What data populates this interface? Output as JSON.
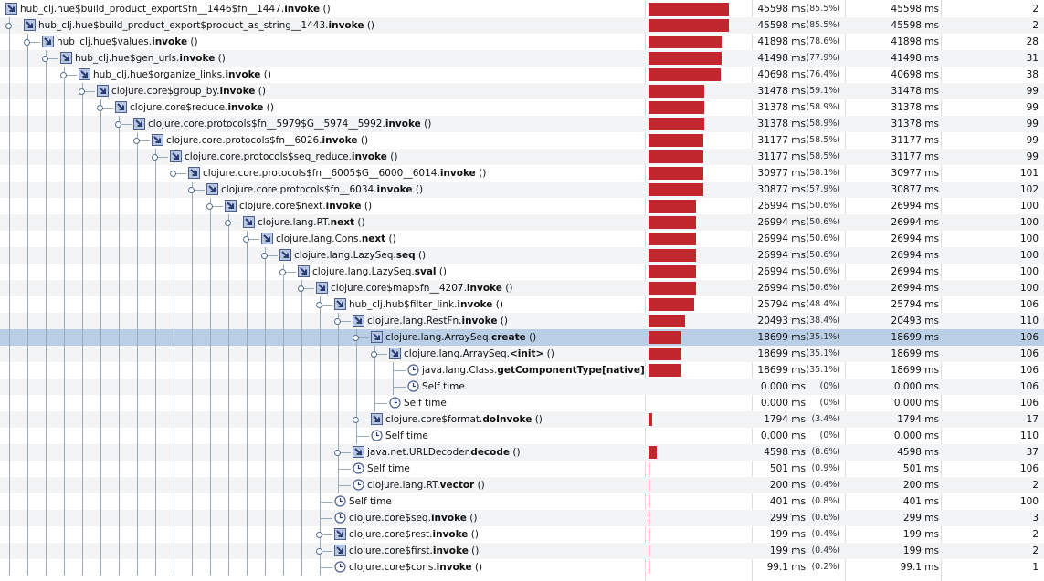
{
  "rows": [
    {
      "name": [
        "hub_clj.hue$build_product_export$fn__1446$fn__1447.",
        "invoke",
        " ()"
      ],
      "depth": 0,
      "time": "45598 ms",
      "pct": 85.5,
      "pct_label": "(85.5%)",
      "time2": "45598 ms",
      "count": "2"
    },
    {
      "name": [
        "hub_clj.hue$build_product_export$product_as_string__1443.",
        "invoke",
        " ()"
      ],
      "depth": 1,
      "time": "45598 ms",
      "pct": 85.5,
      "pct_label": "(85.5%)",
      "time2": "45598 ms",
      "count": "2"
    },
    {
      "name": [
        "hub_clj.hue$values.",
        "invoke",
        " ()"
      ],
      "depth": 2,
      "time": "41898 ms",
      "pct": 78.6,
      "pct_label": "(78.6%)",
      "time2": "41898 ms",
      "count": "28"
    },
    {
      "name": [
        "hub_clj.hue$gen_urls.",
        "invoke",
        " ()"
      ],
      "depth": 3,
      "time": "41498 ms",
      "pct": 77.9,
      "pct_label": "(77.9%)",
      "time2": "41498 ms",
      "count": "31"
    },
    {
      "name": [
        "hub_clj.hue$organize_links.",
        "invoke",
        " ()"
      ],
      "depth": 4,
      "time": "40698 ms",
      "pct": 76.4,
      "pct_label": "(76.4%)",
      "time2": "40698 ms",
      "count": "38"
    },
    {
      "name": [
        "clojure.core$group_by.",
        "invoke",
        " ()"
      ],
      "depth": 5,
      "time": "31478 ms",
      "pct": 59.1,
      "pct_label": "(59.1%)",
      "time2": "31478 ms",
      "count": "99"
    },
    {
      "name": [
        "clojure.core$reduce.",
        "invoke",
        " ()"
      ],
      "depth": 6,
      "time": "31378 ms",
      "pct": 58.9,
      "pct_label": "(58.9%)",
      "time2": "31378 ms",
      "count": "99"
    },
    {
      "name": [
        "clojure.core.protocols$fn__5979$G__5974__5992.",
        "invoke",
        " ()"
      ],
      "depth": 7,
      "time": "31378 ms",
      "pct": 58.9,
      "pct_label": "(58.9%)",
      "time2": "31378 ms",
      "count": "99"
    },
    {
      "name": [
        "clojure.core.protocols$fn__6026.",
        "invoke",
        " ()"
      ],
      "depth": 8,
      "time": "31177 ms",
      "pct": 58.5,
      "pct_label": "(58.5%)",
      "time2": "31177 ms",
      "count": "99"
    },
    {
      "name": [
        "clojure.core.protocols$seq_reduce.",
        "invoke",
        " ()"
      ],
      "depth": 9,
      "time": "31177 ms",
      "pct": 58.5,
      "pct_label": "(58.5%)",
      "time2": "31177 ms",
      "count": "99"
    },
    {
      "name": [
        "clojure.core.protocols$fn__6005$G__6000__6014.",
        "invoke",
        " ()"
      ],
      "depth": 10,
      "time": "30977 ms",
      "pct": 58.1,
      "pct_label": "(58.1%)",
      "time2": "30977 ms",
      "count": "101"
    },
    {
      "name": [
        "clojure.core.protocols$fn__6034.",
        "invoke",
        " ()"
      ],
      "depth": 11,
      "time": "30877 ms",
      "pct": 57.9,
      "pct_label": "(57.9%)",
      "time2": "30877 ms",
      "count": "102"
    },
    {
      "name": [
        "clojure.core$next.",
        "invoke",
        " ()"
      ],
      "depth": 12,
      "time": "26994 ms",
      "pct": 50.6,
      "pct_label": "(50.6%)",
      "time2": "26994 ms",
      "count": "100"
    },
    {
      "name": [
        "clojure.lang.RT.",
        "next",
        " ()"
      ],
      "depth": 13,
      "time": "26994 ms",
      "pct": 50.6,
      "pct_label": "(50.6%)",
      "time2": "26994 ms",
      "count": "100"
    },
    {
      "name": [
        "clojure.lang.Cons.",
        "next",
        " ()"
      ],
      "depth": 14,
      "time": "26994 ms",
      "pct": 50.6,
      "pct_label": "(50.6%)",
      "time2": "26994 ms",
      "count": "100"
    },
    {
      "name": [
        "clojure.lang.LazySeq.",
        "seq",
        " ()"
      ],
      "depth": 15,
      "time": "26994 ms",
      "pct": 50.6,
      "pct_label": "(50.6%)",
      "time2": "26994 ms",
      "count": "100"
    },
    {
      "name": [
        "clojure.lang.LazySeq.",
        "sval",
        " ()"
      ],
      "depth": 16,
      "time": "26994 ms",
      "pct": 50.6,
      "pct_label": "(50.6%)",
      "time2": "26994 ms",
      "count": "100"
    },
    {
      "name": [
        "clojure.core$map$fn__4207.",
        "invoke",
        " ()"
      ],
      "depth": 17,
      "time": "26994 ms",
      "pct": 50.6,
      "pct_label": "(50.6%)",
      "time2": "26994 ms",
      "count": "100"
    },
    {
      "name": [
        "hub_clj.hub$filter_link.",
        "invoke",
        " ()"
      ],
      "depth": 18,
      "time": "25794 ms",
      "pct": 48.4,
      "pct_label": "(48.4%)",
      "time2": "25794 ms",
      "count": "106"
    },
    {
      "name": [
        "clojure.lang.RestFn.",
        "invoke",
        " ()"
      ],
      "depth": 19,
      "time": "20493 ms",
      "pct": 38.4,
      "pct_label": "(38.4%)",
      "time2": "20493 ms",
      "count": "110"
    },
    {
      "name": [
        "clojure.lang.ArraySeq.",
        "create",
        " ()"
      ],
      "depth": 20,
      "time": "18699 ms",
      "pct": 35.1,
      "pct_label": "(35.1%)",
      "time2": "18699 ms",
      "count": "106",
      "selected": true
    },
    {
      "name": [
        "clojure.lang.ArraySeq.",
        "<init>",
        " ()"
      ],
      "depth": 21,
      "time": "18699 ms",
      "pct": 35.1,
      "pct_label": "(35.1%)",
      "time2": "18699 ms",
      "count": "106"
    },
    {
      "name": [
        "java.lang.Class.",
        "getComponentType[native]",
        " ()"
      ],
      "depth": 22,
      "time": "18699 ms",
      "pct": 35.1,
      "pct_label": "(35.1%)",
      "time2": "18699 ms",
      "count": "106",
      "kind": "clock"
    },
    {
      "name": [
        "Self time"
      ],
      "depth": 22,
      "time": "0.000 ms",
      "pct": 0,
      "pct_label": "(0%)",
      "time2": "0.000 ms",
      "count": "106",
      "kind": "clock"
    },
    {
      "name": [
        "Self time"
      ],
      "depth": 21,
      "time": "0.000 ms",
      "pct": 0,
      "pct_label": "(0%)",
      "time2": "0.000 ms",
      "count": "106",
      "kind": "clock"
    },
    {
      "name": [
        "clojure.core$format.",
        "doInvoke",
        " ()"
      ],
      "depth": 20,
      "time": "1794 ms",
      "pct": 3.4,
      "pct_label": "(3.4%)",
      "time2": "1794 ms",
      "count": "17"
    },
    {
      "name": [
        "Self time"
      ],
      "depth": 20,
      "time": "0.000 ms",
      "pct": 0,
      "pct_label": "(0%)",
      "time2": "0.000 ms",
      "count": "110",
      "kind": "clock"
    },
    {
      "name": [
        "java.net.URLDecoder.",
        "decode",
        " ()"
      ],
      "depth": 19,
      "time": "4598 ms",
      "pct": 8.6,
      "pct_label": "(8.6%)",
      "time2": "4598 ms",
      "count": "37"
    },
    {
      "name": [
        "Self time"
      ],
      "depth": 19,
      "time": "501 ms",
      "pct": 0.9,
      "pct_label": "(0.9%)",
      "time2": "501 ms",
      "count": "106",
      "kind": "clock"
    },
    {
      "name": [
        "clojure.lang.RT.",
        "vector",
        " ()"
      ],
      "depth": 19,
      "time": "200 ms",
      "pct": 0.4,
      "pct_label": "(0.4%)",
      "time2": "200 ms",
      "count": "2",
      "kind": "clock"
    },
    {
      "name": [
        "Self time"
      ],
      "depth": 18,
      "time": "401 ms",
      "pct": 0.8,
      "pct_label": "(0.8%)",
      "time2": "401 ms",
      "count": "100",
      "kind": "clock"
    },
    {
      "name": [
        "clojure.core$seq.",
        "invoke",
        " ()"
      ],
      "depth": 18,
      "time": "299 ms",
      "pct": 0.6,
      "pct_label": "(0.6%)",
      "time2": "299 ms",
      "count": "3",
      "kind": "clock"
    },
    {
      "name": [
        "clojure.core$rest.",
        "invoke",
        " ()"
      ],
      "depth": 18,
      "time": "199 ms",
      "pct": 0.4,
      "pct_label": "(0.4%)",
      "time2": "199 ms",
      "count": "2"
    },
    {
      "name": [
        "clojure.core$first.",
        "invoke",
        " ()"
      ],
      "depth": 18,
      "time": "199 ms",
      "pct": 0.4,
      "pct_label": "(0.4%)",
      "time2": "199 ms",
      "count": "2"
    },
    {
      "name": [
        "clojure.core$cons.",
        "invoke",
        " ()"
      ],
      "depth": 18,
      "time": "99.1 ms",
      "pct": 0.2,
      "pct_label": "(0.2%)",
      "time2": "99.1 ms",
      "count": "1",
      "kind": "clock"
    }
  ]
}
